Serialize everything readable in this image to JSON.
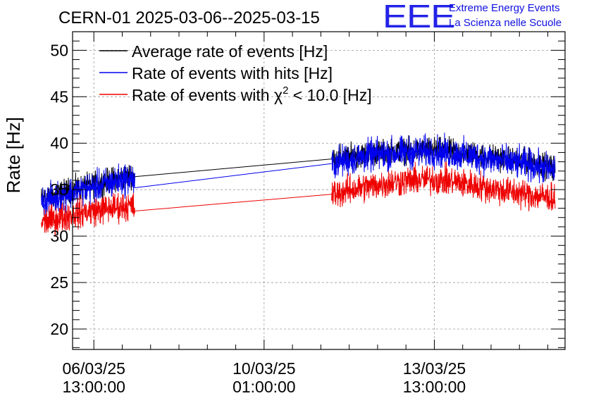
{
  "chart_data": {
    "type": "line",
    "title": "CERN-01 2025-03-06--2025-03-15",
    "ylabel": "Rate [Hz]",
    "xlabel": "",
    "ylim": [
      17.8,
      52
    ],
    "yticks": [
      20,
      25,
      30,
      35,
      40,
      45,
      50
    ],
    "x_unit": "hours since 2025-03-06 00:00",
    "xlim": [
      2.5,
      245.5
    ],
    "xticks": [
      {
        "x": 13,
        "date": "06/03/25",
        "time": "13:00:00"
      },
      {
        "x": 97,
        "date": "10/03/25",
        "time": "01:00:00"
      },
      {
        "x": 181,
        "date": "13/03/25",
        "time": "13:00:00"
      }
    ],
    "grid": true,
    "legend_position": "top-left",
    "series": [
      {
        "name": "Average rate of events [Hz]",
        "color": "#000000",
        "segments": [
          {
            "x": [
              -12.9,
              -6,
              0,
              6,
              12,
              18,
              24,
              28,
              32,
              33.2
            ],
            "y": [
              34.0,
              34.4,
              34.9,
              35.2,
              35.5,
              35.8,
              36.2,
              36.4,
              36.6,
              36.4
            ]
          },
          {
            "x": [
              33.2,
              130.3
            ],
            "y": [
              36.4,
              38.3
            ]
          },
          {
            "x": [
              130.3,
              140,
              150,
              160,
              170,
              180,
              190,
              200,
              210,
              220,
              230,
              240.6
            ],
            "y": [
              38.3,
              38.6,
              38.9,
              39.1,
              39.2,
              39.3,
              39.1,
              38.8,
              38.5,
              38.2,
              37.9,
              37.3
            ]
          }
        ],
        "noise": 1.0
      },
      {
        "name": "Rate of events with hits [Hz]",
        "color": "#0000ee",
        "segments": [
          {
            "x": [
              -12.9,
              -6,
              0,
              6,
              12,
              18,
              24,
              28,
              32,
              33.2
            ],
            "y": [
              33.7,
              34.1,
              34.6,
              34.9,
              35.2,
              35.5,
              35.9,
              36.1,
              36.3,
              35.2
            ]
          },
          {
            "x": [
              33.2,
              130.3
            ],
            "y": [
              35.2,
              37.8
            ]
          },
          {
            "x": [
              130.3,
              140,
              150,
              160,
              170,
              180,
              190,
              200,
              210,
              220,
              230,
              240.6
            ],
            "y": [
              37.8,
              38.3,
              38.7,
              38.9,
              39.0,
              39.1,
              38.9,
              38.6,
              38.2,
              37.9,
              37.6,
              37.0
            ]
          }
        ],
        "noise": 1.3
      },
      {
        "name": "Rate of events with χ² < 10.0 [Hz]",
        "color": "#ee0000",
        "segments": [
          {
            "x": [
              -12.9,
              -6,
              0,
              6,
              12,
              18,
              24,
              28,
              32,
              33.2
            ],
            "y": [
              31.5,
              31.8,
              32.2,
              32.5,
              32.7,
              32.9,
              33.1,
              33.2,
              33.3,
              32.7
            ]
          },
          {
            "x": [
              33.2,
              130.3
            ],
            "y": [
              32.7,
              34.5
            ]
          },
          {
            "x": [
              130.3,
              140,
              150,
              160,
              170,
              180,
              190,
              200,
              210,
              220,
              230,
              240.6
            ],
            "y": [
              34.5,
              35.0,
              35.4,
              35.8,
              36.0,
              36.1,
              35.9,
              35.5,
              35.1,
              34.7,
              34.4,
              34.1
            ]
          }
        ],
        "noise": 1.2
      }
    ]
  },
  "logo": {
    "letters": "EEE",
    "line1": "Extreme Energy Events",
    "line2": "La Scienza nelle Scuole"
  }
}
